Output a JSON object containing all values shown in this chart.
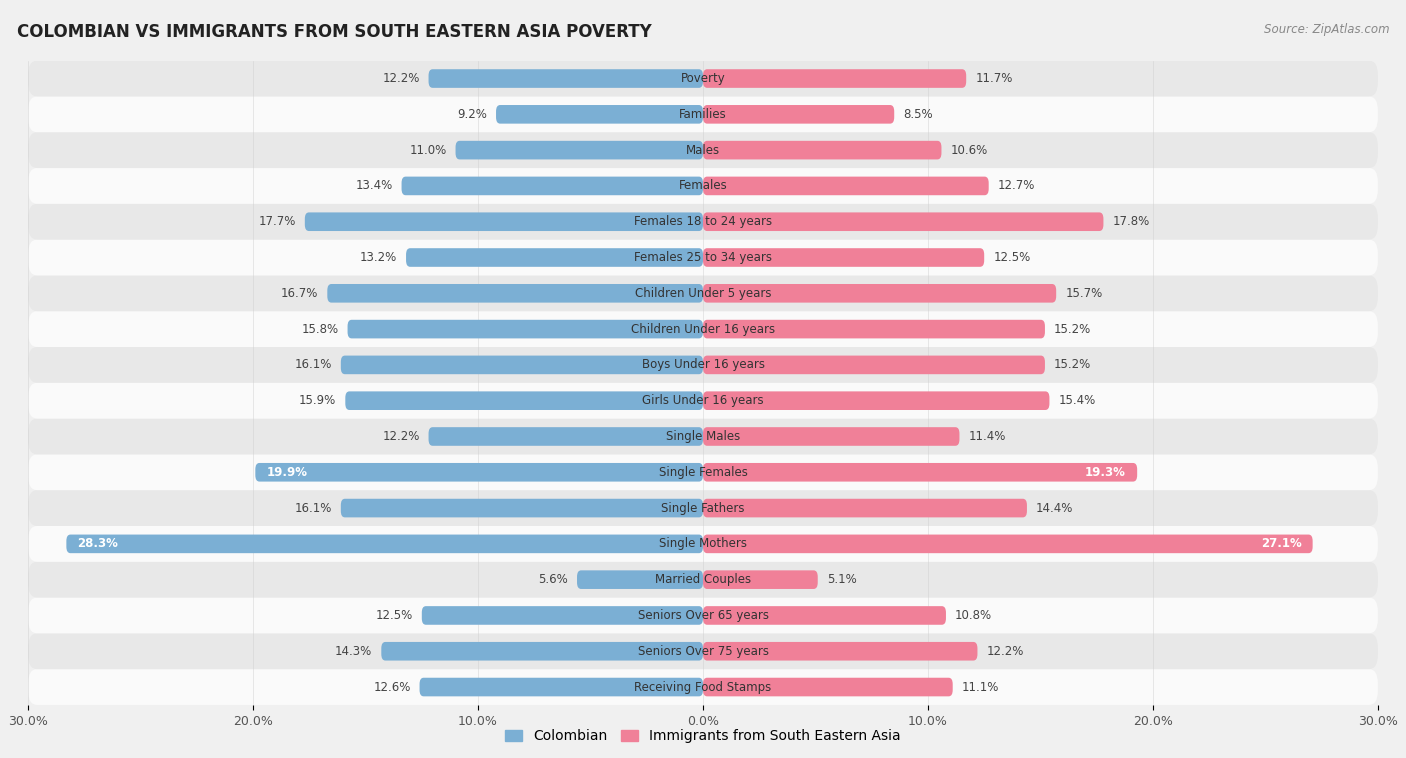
{
  "title": "COLOMBIAN VS IMMIGRANTS FROM SOUTH EASTERN ASIA POVERTY",
  "source": "Source: ZipAtlas.com",
  "categories": [
    "Poverty",
    "Families",
    "Males",
    "Females",
    "Females 18 to 24 years",
    "Females 25 to 34 years",
    "Children Under 5 years",
    "Children Under 16 years",
    "Boys Under 16 years",
    "Girls Under 16 years",
    "Single Males",
    "Single Females",
    "Single Fathers",
    "Single Mothers",
    "Married Couples",
    "Seniors Over 65 years",
    "Seniors Over 75 years",
    "Receiving Food Stamps"
  ],
  "colombian": [
    12.2,
    9.2,
    11.0,
    13.4,
    17.7,
    13.2,
    16.7,
    15.8,
    16.1,
    15.9,
    12.2,
    19.9,
    16.1,
    28.3,
    5.6,
    12.5,
    14.3,
    12.6
  ],
  "immigrants": [
    11.7,
    8.5,
    10.6,
    12.7,
    17.8,
    12.5,
    15.7,
    15.2,
    15.2,
    15.4,
    11.4,
    19.3,
    14.4,
    27.1,
    5.1,
    10.8,
    12.2,
    11.1
  ],
  "colombian_color": "#7bafd4",
  "immigrants_color": "#f08098",
  "background_color": "#f0f0f0",
  "row_color_odd": "#e8e8e8",
  "row_color_even": "#fafafa",
  "max_value": 30.0,
  "legend_colombian": "Colombian",
  "legend_immigrants": "Immigrants from South Eastern Asia",
  "label_threshold": 18.5
}
